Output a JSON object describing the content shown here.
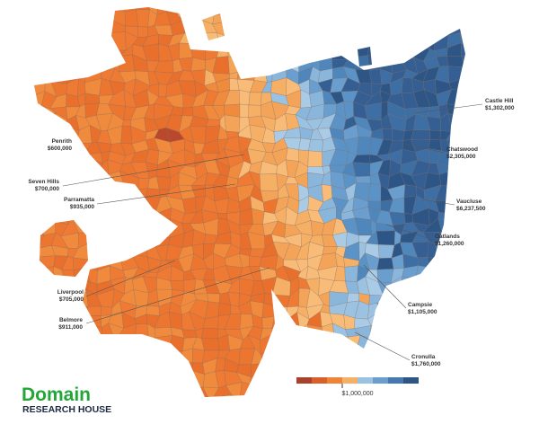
{
  "labels": [
    {
      "name": "Penrith",
      "price": "$600,000"
    },
    {
      "name": "Seven Hills",
      "price": "$700,000"
    },
    {
      "name": "Parramatta",
      "price": "$935,000"
    },
    {
      "name": "Liverpool",
      "price": "$705,000"
    },
    {
      "name": "Belmore",
      "price": "$911,000"
    },
    {
      "name": "Castle Hill",
      "price": "$1,302,000"
    },
    {
      "name": "Chatswood",
      "price": "$2,305,000"
    },
    {
      "name": "Vaucluse",
      "price": "$6,237,500"
    },
    {
      "name": "Oatlands",
      "price": "$1,260,000"
    },
    {
      "name": "Campsie",
      "price": "$1,105,000"
    },
    {
      "name": "Cronulla",
      "price": "$1,760,000"
    }
  ],
  "legend": {
    "label": "$1,000,000"
  },
  "logo": {
    "brand": "Domain",
    "tagline": "RESEARCH HOUSE"
  }
}
